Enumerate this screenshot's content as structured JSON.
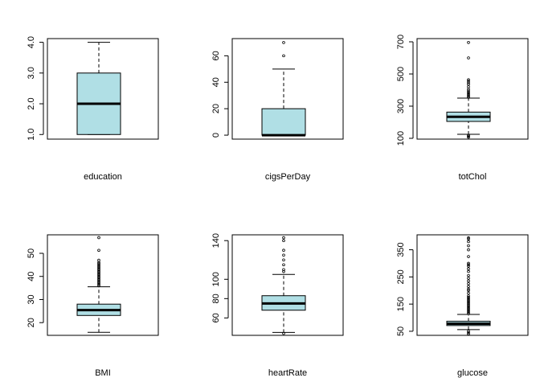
{
  "chart_data": [
    {
      "type": "boxplot",
      "xlabel": "education",
      "ylim": [
        0.85,
        4.12
      ],
      "ticks": [
        1.0,
        2.0,
        3.0,
        4.0
      ],
      "tick_labels": [
        "1.0",
        "2.0",
        "3.0",
        "4.0"
      ],
      "box": {
        "min": 1.0,
        "q1": 1.0,
        "median": 2.0,
        "q3": 3.0,
        "max": 4.0
      },
      "outliers": []
    },
    {
      "type": "boxplot",
      "xlabel": "cigsPerDay",
      "ylim": [
        -3,
        73
      ],
      "ticks": [
        0,
        20,
        40,
        60
      ],
      "tick_labels": [
        "0",
        "20",
        "40",
        "60"
      ],
      "box": {
        "min": 0,
        "q1": 0,
        "median": 0,
        "q3": 20,
        "max": 50
      },
      "outliers": [
        60,
        70
      ]
    },
    {
      "type": "boxplot",
      "xlabel": "totChol",
      "ylim": [
        95,
        720
      ],
      "ticks": [
        100,
        300,
        500,
        700
      ],
      "tick_labels": [
        "100",
        "300",
        "500",
        "700"
      ],
      "box": {
        "min": 125,
        "q1": 205,
        "median": 234,
        "q3": 263,
        "max": 350
      },
      "outliers": [
        107,
        113,
        118,
        355,
        362,
        370,
        378,
        386,
        395,
        405,
        420,
        435,
        445,
        455,
        464,
        600,
        696
      ]
    },
    {
      "type": "boxplot",
      "xlabel": "BMI",
      "ylim": [
        14.5,
        58
      ],
      "ticks": [
        20,
        30,
        40,
        50
      ],
      "tick_labels": [
        "20",
        "30",
        "40",
        "50"
      ],
      "box": {
        "min": 15.8,
        "q1": 23.1,
        "median": 25.4,
        "q3": 28.0,
        "max": 35.5
      },
      "outliers": [
        36,
        36.5,
        37,
        37.5,
        38,
        38.5,
        39,
        39.5,
        40,
        40.5,
        41,
        41.5,
        42,
        42.5,
        43,
        43.5,
        44,
        44.5,
        45,
        45.5,
        46,
        47,
        51.3,
        56.8
      ]
    },
    {
      "type": "boxplot",
      "xlabel": "heartRate",
      "ylim": [
        42,
        146
      ],
      "ticks": [
        60,
        80,
        100,
        140
      ],
      "tick_labels": [
        "60",
        "80",
        "100",
        "140"
      ],
      "box": {
        "min": 45,
        "q1": 68,
        "median": 75,
        "q3": 83,
        "max": 105
      },
      "outliers": [
        44,
        108,
        110,
        115,
        120,
        125,
        130,
        140,
        143
      ]
    },
    {
      "type": "boxplot",
      "xlabel": "glucose",
      "ylim": [
        35,
        405
      ],
      "ticks": [
        50,
        150,
        250,
        350
      ],
      "tick_labels": [
        "50",
        "150",
        "250",
        "350"
      ],
      "box": {
        "min": 56,
        "q1": 71,
        "median": 78,
        "q3": 87,
        "max": 112
      },
      "outliers": [
        40,
        45,
        50,
        115,
        120,
        125,
        130,
        135,
        140,
        145,
        150,
        155,
        160,
        165,
        170,
        175,
        180,
        190,
        200,
        205,
        215,
        225,
        235,
        245,
        255,
        270,
        280,
        290,
        295,
        300,
        325,
        350,
        365,
        380,
        390,
        394
      ]
    }
  ],
  "colors": {
    "box_fill": "#b0dfe5",
    "stroke": "#000000",
    "background": "#ffffff"
  }
}
